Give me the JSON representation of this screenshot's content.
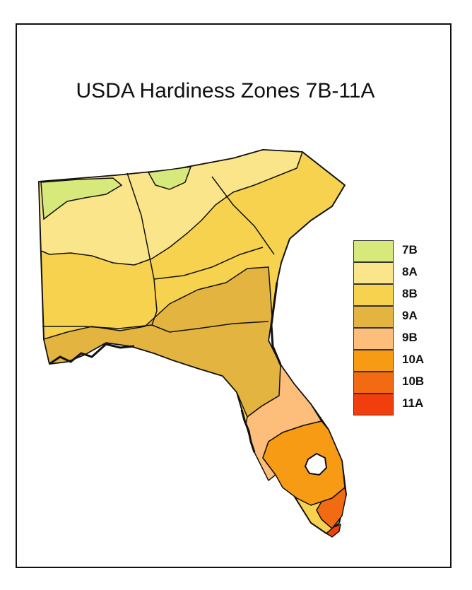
{
  "title": "USDA Hardiness Zones 7B-11A",
  "legend": [
    {
      "zone": "7B",
      "color": "#d7e97a"
    },
    {
      "zone": "8A",
      "color": "#fbe58a"
    },
    {
      "zone": "8B",
      "color": "#f6d24e"
    },
    {
      "zone": "9A",
      "color": "#e3b43f"
    },
    {
      "zone": "9B",
      "color": "#fdbd7b"
    },
    {
      "zone": "10A",
      "color": "#f79a14"
    },
    {
      "zone": "10B",
      "color": "#f26a12"
    },
    {
      "zone": "11A",
      "color": "#f03f0c"
    }
  ],
  "colors": {
    "outline": "#111111",
    "background": "#ffffff"
  }
}
